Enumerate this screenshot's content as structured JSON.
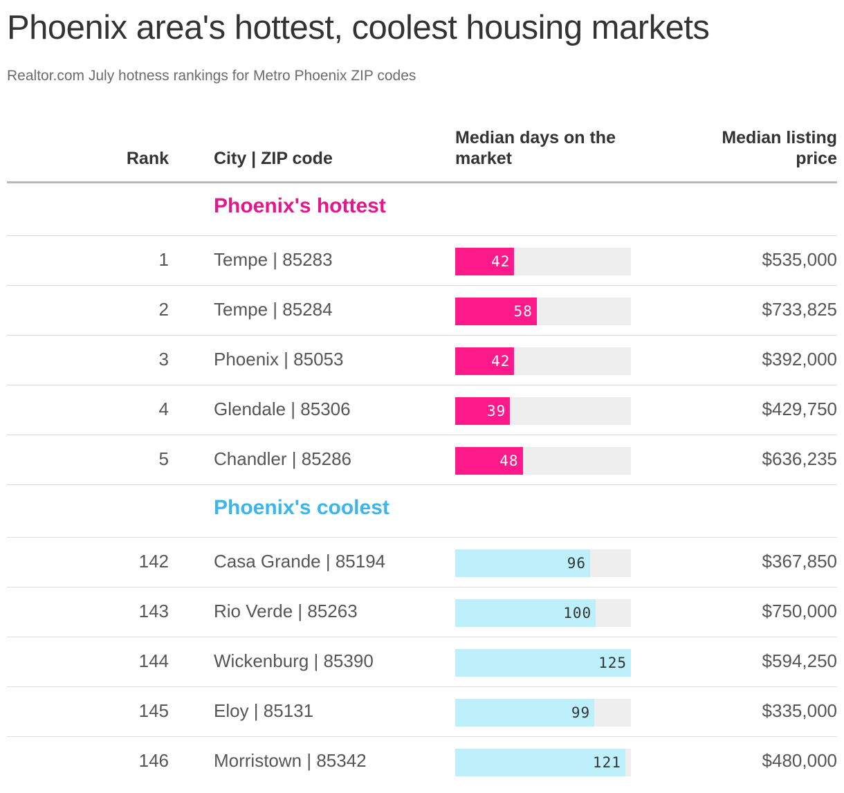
{
  "title": "Phoenix area's hottest, coolest housing markets",
  "subtitle": "Realtor.com July hotness rankings for Metro Phoenix ZIP codes",
  "colors": {
    "hot": "#ff1a8c",
    "hot_label": "#ffffff",
    "cool": "#bdf0fb",
    "cool_label": "#333333",
    "hot_heading": "#e5168a",
    "cool_heading": "#3bb5ef"
  },
  "chart_data": {
    "type": "table",
    "columns": [
      "Rank",
      "City | ZIP code",
      "Median days on the market",
      "Median listing price"
    ],
    "bar_max": 125,
    "sections": [
      {
        "label": "Phoenix's hottest",
        "kind": "hot",
        "rows": [
          {
            "rank": "1",
            "city": "Tempe | 85283",
            "days": 42,
            "days_label": "42",
            "price": "$535,000"
          },
          {
            "rank": "2",
            "city": "Tempe | 85284",
            "days": 58,
            "days_label": "58",
            "price": "$733,825"
          },
          {
            "rank": "3",
            "city": "Phoenix | 85053",
            "days": 42,
            "days_label": "42",
            "price": "$392,000"
          },
          {
            "rank": "4",
            "city": "Glendale | 85306",
            "days": 39,
            "days_label": "39",
            "price": "$429,750"
          },
          {
            "rank": "5",
            "city": "Chandler | 85286",
            "days": 48,
            "days_label": "48",
            "price": "$636,235"
          }
        ]
      },
      {
        "label": "Phoenix's coolest",
        "kind": "cool",
        "rows": [
          {
            "rank": "142",
            "city": "Casa Grande | 85194",
            "days": 96,
            "days_label": "96",
            "price": "$367,850"
          },
          {
            "rank": "143",
            "city": "Rio Verde | 85263",
            "days": 100,
            "days_label": "100",
            "price": "$750,000"
          },
          {
            "rank": "144",
            "city": "Wickenburg | 85390",
            "days": 125,
            "days_label": "125",
            "price": "$594,250"
          },
          {
            "rank": "145",
            "city": "Eloy | 85131",
            "days": 99,
            "days_label": "99",
            "price": "$335,000"
          },
          {
            "rank": "146",
            "city": "Morristown | 85342",
            "days": 121,
            "days_label": "121",
            "price": "$480,000"
          }
        ]
      }
    ]
  }
}
